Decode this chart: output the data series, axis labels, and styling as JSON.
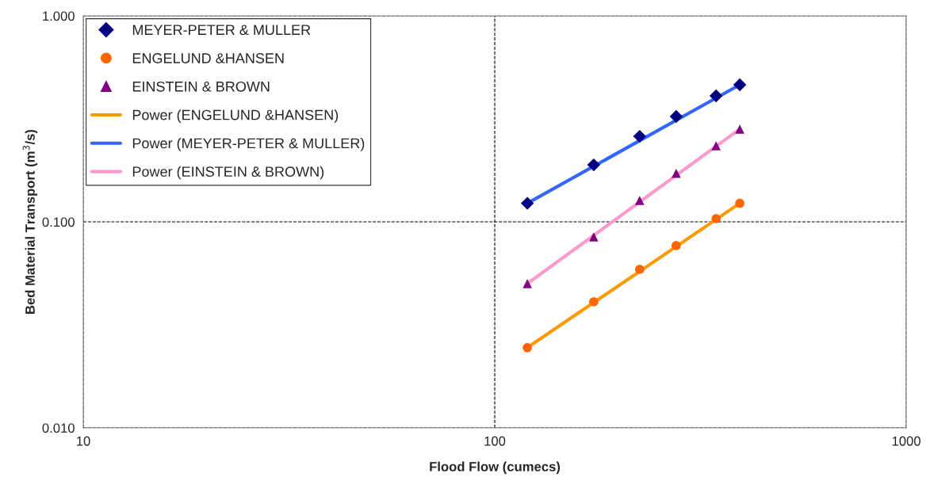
{
  "chart_data": {
    "type": "scatter",
    "xlabel": "Flood Flow (cumecs)",
    "ylabel": "Bed Material Transport (m$^{3}$/s)",
    "log": "xy",
    "grid": true,
    "legend": "top left",
    "line_style": "dashed",
    "xlim": [
      10,
      1000
    ],
    "xticks": [
      10,
      100,
      1000
    ],
    "ylim": [
      0.01,
      1.0
    ],
    "yticks": [
      {
        "value": 0.01,
        "label": "0.010"
      },
      {
        "value": 0.1,
        "label": "0.100"
      },
      {
        "value": 1.0,
        "label": "1.000"
      }
    ],
    "series": [
      {
        "name": "MEYER-PETER & MULLER",
        "marker": "diamond",
        "color": "#000080",
        "x": [
          120,
          174,
          225,
          276,
          345,
          394
        ],
        "values": [
          0.123,
          0.189,
          0.26,
          0.325,
          0.409,
          0.463
        ]
      },
      {
        "name": "ENGELUND &HANSEN",
        "marker": "circle",
        "color": "#ff6600",
        "x": [
          120,
          174,
          225,
          276,
          345,
          394
        ],
        "values": [
          0.0245,
          0.0409,
          0.0588,
          0.0767,
          0.1036,
          0.123
        ]
      },
      {
        "name": "EINSTEIN & BROWN",
        "marker": "triangle",
        "color": "#800080",
        "x": [
          120,
          174,
          225,
          276,
          345,
          394
        ],
        "values": [
          0.0501,
          0.0845,
          0.127,
          0.172,
          0.234,
          0.282
        ]
      },
      {
        "name": "Power (ENGELUND &HANSEN)",
        "type": "line",
        "marker": "none",
        "line_style": "solid",
        "color": "#ff9900",
        "x": [
          120,
          394
        ],
        "values": [
          0.0245,
          0.123
        ]
      },
      {
        "name": "Power (MEYER-PETER & MULLER)",
        "type": "line",
        "marker": "none",
        "line_style": "solid",
        "color": "#3366ff",
        "x": [
          120,
          394
        ],
        "values": [
          0.123,
          0.463
        ]
      },
      {
        "name": "Power (EINSTEIN & BROWN)",
        "type": "line",
        "marker": "none",
        "line_style": "solid",
        "color": "#ff99cc",
        "x": [
          120,
          394
        ],
        "values": [
          0.0501,
          0.282
        ]
      }
    ]
  }
}
